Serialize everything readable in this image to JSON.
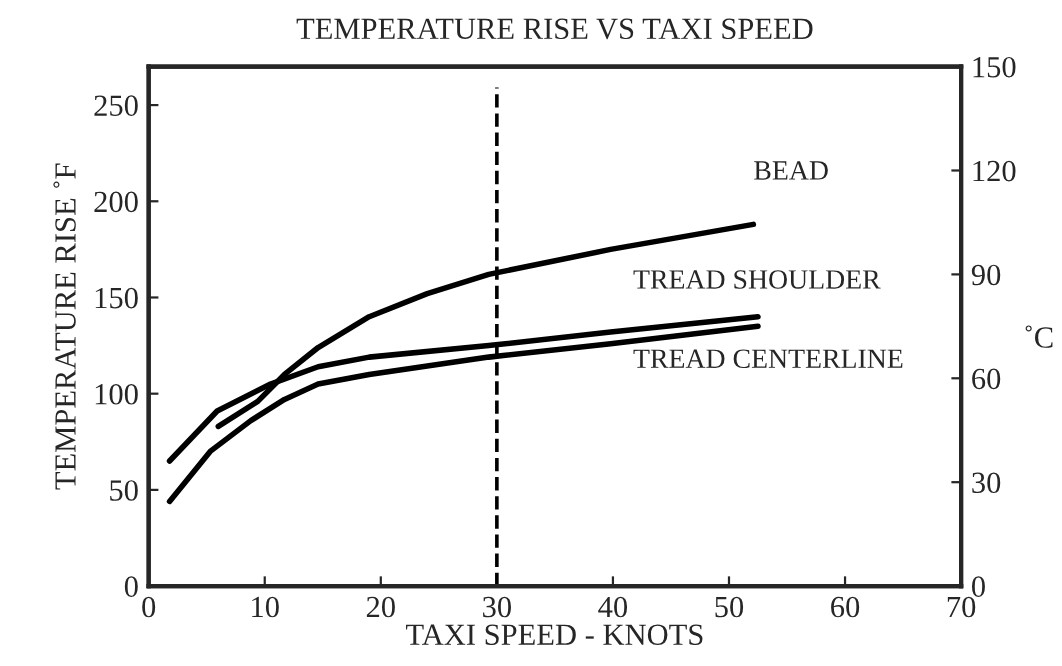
{
  "chart_data": {
    "type": "line",
    "title": "TEMPERATURE RISE VS TAXI SPEED",
    "xlabel": "TAXI SPEED - KNOTS",
    "ylabel": "TEMPERATURE RISE ˚F",
    "y2label": "˚C",
    "xlim": [
      0,
      70
    ],
    "xticks": [
      0,
      10,
      20,
      30,
      40,
      50,
      60,
      70
    ],
    "ylim": [
      0,
      270
    ],
    "yticks": [
      0,
      50,
      100,
      150,
      200,
      250
    ],
    "y2lim": [
      0,
      150
    ],
    "y2ticks": [
      0,
      30,
      60,
      90,
      120,
      150
    ],
    "grid": false,
    "legend": false,
    "marker": "none",
    "line_style": "solid",
    "series": [
      {
        "name": "BEAD",
        "color": "#000000",
        "x": [
          6,
          9.4,
          11.7,
          14.6,
          19,
          24,
          29.3,
          39.8,
          52.1
        ],
        "values": [
          83,
          96,
          110,
          124,
          140,
          152,
          162,
          175,
          188
        ]
      },
      {
        "name": "TREAD SHOULDER",
        "color": "#000000",
        "x": [
          1.8,
          5.9,
          10.5,
          14.6,
          19,
          29.3,
          39.8,
          52.5
        ],
        "values": [
          65,
          91,
          105,
          114,
          119,
          125,
          132,
          140
        ]
      },
      {
        "name": "TREAD CENTERLINE",
        "color": "#000000",
        "x": [
          1.8,
          5.3,
          8.8,
          11.7,
          14.6,
          19,
          29.3,
          39.8,
          52.5
        ],
        "values": [
          44,
          70,
          86,
          97,
          105,
          110,
          119,
          126,
          135
        ]
      }
    ],
    "ref_lines": [
      {
        "axis": "x",
        "value": 30,
        "color": "#000000",
        "line_style": "dashed"
      }
    ]
  }
}
